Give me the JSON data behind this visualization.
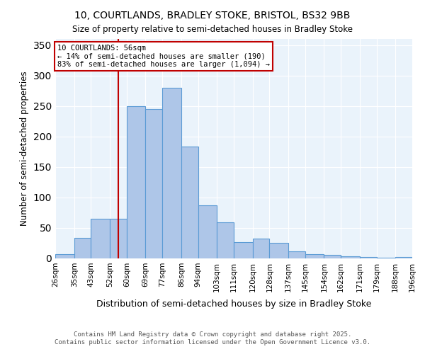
{
  "title1": "10, COURTLANDS, BRADLEY STOKE, BRISTOL, BS32 9BB",
  "title2": "Size of property relative to semi-detached houses in Bradley Stoke",
  "xlabel": "Distribution of semi-detached houses by size in Bradley Stoke",
  "ylabel": "Number of semi-detached properties",
  "bar_edges": [
    26,
    35,
    43,
    52,
    60,
    69,
    77,
    86,
    94,
    103,
    111,
    120,
    128,
    137,
    145,
    154,
    162,
    171,
    179,
    188,
    196
  ],
  "bar_heights": [
    7,
    34,
    65,
    65,
    250,
    245,
    280,
    183,
    87,
    59,
    27,
    32,
    26,
    12,
    7,
    6,
    4,
    2,
    1,
    2
  ],
  "bar_color": "#aec6e8",
  "bar_edge_color": "#5b9bd5",
  "property_size": 56,
  "vline_color": "#c00000",
  "annotation_text": "10 COURTLANDS: 56sqm\n← 14% of semi-detached houses are smaller (190)\n83% of semi-detached houses are larger (1,094) →",
  "annotation_box_color": "#ffffff",
  "annotation_box_edge": "#c00000",
  "ylim": [
    0,
    360
  ],
  "yticks": [
    0,
    50,
    100,
    150,
    200,
    250,
    300,
    350
  ],
  "bg_color": "#eaf3fb",
  "footer1": "Contains HM Land Registry data © Crown copyright and database right 2025.",
  "footer2": "Contains public sector information licensed under the Open Government Licence v3.0.",
  "tick_labels": [
    "26sqm",
    "35sqm",
    "43sqm",
    "52sqm",
    "60sqm",
    "69sqm",
    "77sqm",
    "86sqm",
    "94sqm",
    "103sqm",
    "111sqm",
    "120sqm",
    "128sqm",
    "137sqm",
    "145sqm",
    "154sqm",
    "162sqm",
    "171sqm",
    "179sqm",
    "188sqm",
    "196sqm"
  ]
}
